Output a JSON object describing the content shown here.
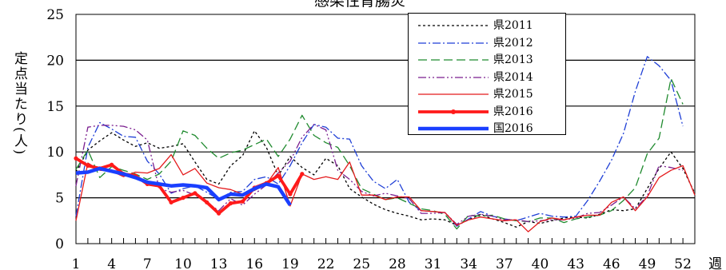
{
  "title": "感染性胃腸炎",
  "ylabel": "定点当たり(人)",
  "xlabel": "週",
  "chart_data": {
    "type": "line",
    "title": "感染性胃腸炎",
    "xlabel": "週",
    "ylabel": "定点当たり(人)",
    "xlim": [
      1,
      53
    ],
    "ylim": [
      0,
      25
    ],
    "yticks": [
      0,
      5,
      10,
      15,
      20,
      25
    ],
    "xticks": [
      1,
      4,
      7,
      10,
      13,
      16,
      19,
      22,
      25,
      28,
      31,
      34,
      37,
      40,
      43,
      46,
      49,
      52
    ],
    "grid": "horizontal",
    "legend_position": "top-center",
    "series": [
      {
        "name": "県2011",
        "color": "#000000",
        "dash": "3,3",
        "width": 1.3,
        "values": [
          7.8,
          10.2,
          11.2,
          12.1,
          11.3,
          10.6,
          11.0,
          10.4,
          10.6,
          10.9,
          8.9,
          7.0,
          6.5,
          8.5,
          9.6,
          12.3,
          10.5,
          7.4,
          9.5,
          8.3,
          7.5,
          9.3,
          8.5,
          6.0,
          5.1,
          4.3,
          3.7,
          3.3,
          3.0,
          2.6,
          2.7,
          2.6,
          2.0,
          2.6,
          3.2,
          2.7,
          2.3,
          1.8,
          2.4,
          2.2,
          2.5,
          2.8,
          2.9,
          2.8,
          3.2,
          3.7,
          3.6,
          3.8,
          6.0,
          8.2,
          10.0,
          8.2,
          5.5
        ]
      },
      {
        "name": "県2012",
        "color": "#1f3fd6",
        "dash": "10,3,2,3",
        "width": 1.3,
        "values": [
          3.0,
          10.5,
          13.2,
          12.5,
          11.7,
          11.6,
          9.0,
          7.6,
          5.5,
          6.0,
          6.3,
          5.6,
          4.8,
          5.6,
          5.7,
          7.0,
          7.3,
          6.5,
          8.5,
          11.0,
          13.0,
          12.7,
          11.5,
          11.4,
          8.5,
          6.8,
          6.0,
          7.0,
          4.5,
          3.6,
          3.5,
          3.4,
          1.9,
          2.7,
          3.5,
          3.0,
          2.7,
          2.5,
          2.9,
          3.3,
          3.0,
          2.9,
          3.0,
          4.7,
          6.8,
          9.1,
          12.0,
          16.6,
          20.4,
          19.4,
          17.8,
          12.8,
          null
        ]
      },
      {
        "name": "県2013",
        "color": "#1f8a2e",
        "dash": "11,5",
        "width": 1.3,
        "values": [
          8.1,
          10.2,
          7.2,
          8.4,
          8.0,
          7.6,
          7.0,
          7.6,
          9.0,
          12.3,
          11.8,
          10.4,
          9.3,
          9.9,
          10.2,
          10.8,
          11.4,
          9.5,
          11.4,
          14.0,
          11.8,
          11.0,
          10.5,
          8.5,
          6.0,
          5.4,
          4.8,
          5.0,
          4.4,
          3.8,
          3.6,
          3.2,
          1.6,
          3.1,
          3.0,
          3.1,
          2.7,
          2.5,
          2.4,
          2.8,
          2.8,
          2.3,
          2.7,
          2.9,
          3.1,
          3.6,
          4.7,
          6.1,
          9.8,
          11.5,
          18.0,
          15.2,
          null
        ]
      },
      {
        "name": "県2014",
        "color": "#7b1f8f",
        "dash": "10,3,2,3,2,3",
        "width": 1.3,
        "values": [
          6.3,
          12.7,
          12.9,
          12.9,
          12.8,
          12.4,
          11.3,
          6.0,
          5.6,
          5.8,
          5.3,
          4.5,
          3.6,
          4.9,
          4.2,
          5.4,
          6.4,
          7.7,
          9.0,
          11.6,
          13.0,
          12.4,
          8.0,
          7.0,
          5.7,
          5.2,
          5.5,
          5.2,
          4.9,
          3.3,
          3.3,
          3.4,
          2.1,
          3.0,
          3.2,
          3.0,
          2.6,
          2.6,
          2.4,
          2.5,
          2.6,
          2.6,
          2.8,
          3.3,
          3.4,
          4.2,
          5.1,
          3.8,
          5.2,
          8.5,
          8.3,
          8.0,
          null
        ]
      },
      {
        "name": "県2015",
        "color": "#e41a1c",
        "dash": "",
        "width": 1.3,
        "values": [
          2.5,
          8.8,
          8.0,
          7.9,
          7.3,
          7.8,
          7.7,
          8.2,
          9.7,
          7.5,
          8.2,
          6.6,
          6.1,
          5.9,
          5.4,
          5.8,
          6.5,
          8.3,
          4.1,
          7.6,
          7.0,
          7.3,
          7.0,
          8.9,
          5.3,
          5.3,
          4.8,
          5.1,
          5.1,
          3.6,
          3.5,
          3.4,
          2.0,
          2.6,
          2.9,
          2.7,
          2.5,
          2.6,
          1.3,
          2.4,
          2.8,
          2.6,
          2.9,
          3.1,
          3.1,
          4.5,
          5.1,
          3.6,
          5.1,
          7.2,
          8.0,
          8.5,
          5.3
        ]
      },
      {
        "name": "県2016",
        "color": "#ff1a1a",
        "dash": "",
        "width": 3.8,
        "markers": true,
        "values": [
          9.3,
          8.5,
          8.2,
          8.6,
          7.6,
          7.4,
          6.5,
          6.3,
          4.5,
          5.0,
          5.5,
          4.5,
          3.3,
          4.4,
          4.6,
          6.1,
          6.6,
          7.4,
          5.4,
          7.6,
          null,
          null,
          null,
          null,
          null,
          null,
          null,
          null,
          null,
          null,
          null,
          null,
          null,
          null,
          null,
          null,
          null,
          null,
          null,
          null,
          null,
          null,
          null,
          null,
          null,
          null,
          null,
          null,
          null,
          null,
          null,
          null,
          null
        ]
      },
      {
        "name": "国2016",
        "color": "#1a3fff",
        "dash": "",
        "width": 4.5,
        "values": [
          7.7,
          7.8,
          8.2,
          7.9,
          7.6,
          7.2,
          6.7,
          6.5,
          6.3,
          6.4,
          6.3,
          6.1,
          4.8,
          5.4,
          5.3,
          6.0,
          6.5,
          6.2,
          4.2,
          null,
          null,
          null,
          null,
          null,
          null,
          null,
          null,
          null,
          null,
          null,
          null,
          null,
          null,
          null,
          null,
          null,
          null,
          null,
          null,
          null,
          null,
          null,
          null,
          null,
          null,
          null,
          null,
          null,
          null,
          null,
          null,
          null,
          null
        ]
      }
    ]
  }
}
